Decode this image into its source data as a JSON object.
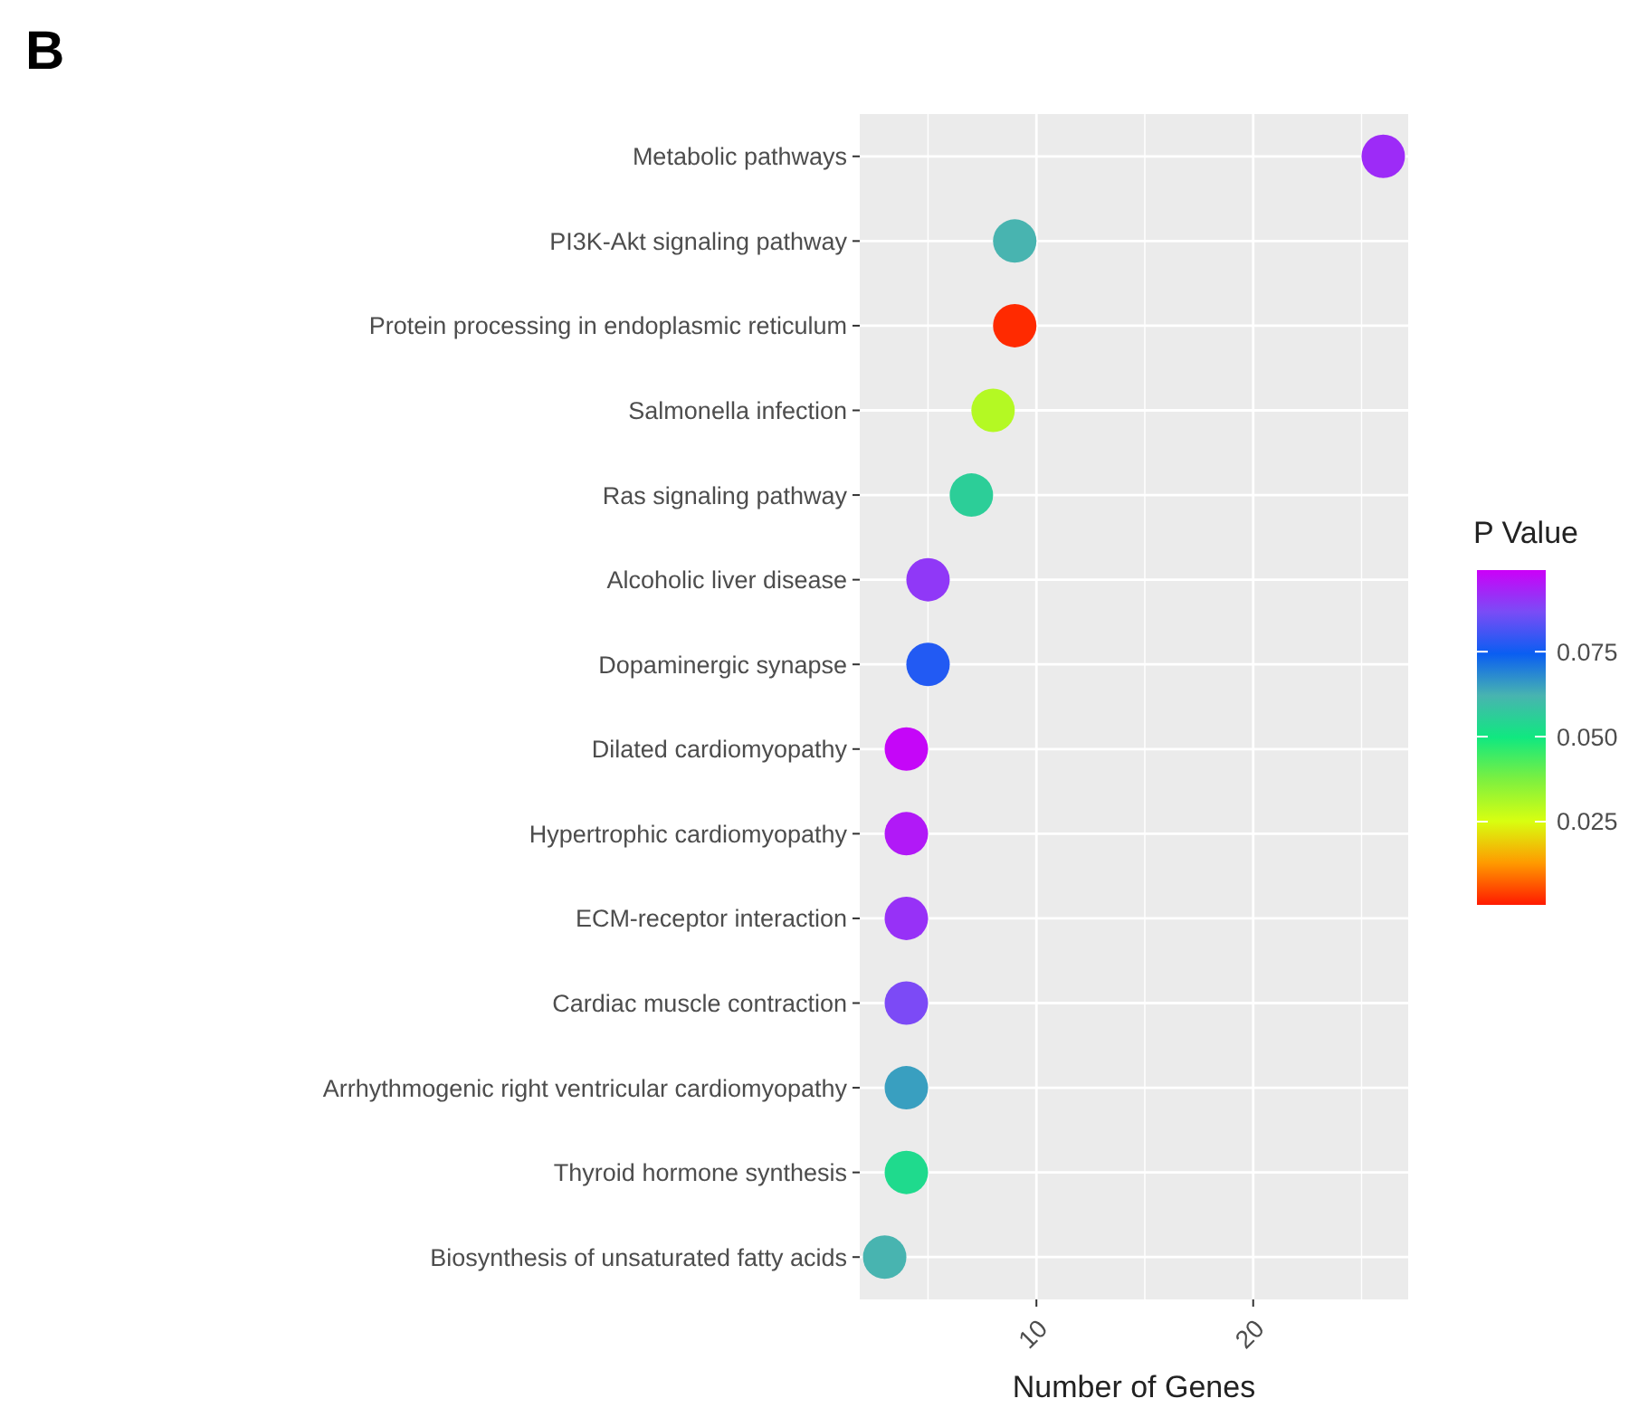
{
  "chart_data": {
    "type": "scatter",
    "title": "B",
    "orientation": "horizontal",
    "xlabel": "Number of Genes",
    "categories": [
      "Metabolic pathways",
      "PI3K-Akt signaling pathway",
      "Protein processing in endoplasmic reticulum",
      "Salmonella infection",
      "Ras signaling pathway",
      "Alcoholic liver disease",
      "Dopaminergic synapse",
      "Dilated cardiomyopathy",
      "Hypertrophic cardiomyopathy",
      "ECM-receptor interaction",
      "Cardiac muscle contraction",
      "Arrhythmogenic right ventricular cardiomyopathy",
      "Thyroid hormone synthesis",
      "Biosynthesis of unsaturated fatty acids"
    ],
    "values": [
      26,
      9,
      9,
      8,
      7,
      5,
      5,
      4,
      4,
      4,
      4,
      4,
      4,
      3
    ],
    "cvalues": [
      0.092,
      0.062,
      0.002,
      0.03,
      0.056,
      0.09,
      0.077,
      0.098,
      0.095,
      0.091,
      0.087,
      0.065,
      0.053,
      0.062
    ],
    "clabel": "P Value",
    "clim": [
      0.0005,
      0.099
    ],
    "cticks": [
      0.025,
      {
        "value": 0.05,
        "label": "0.050"
      },
      {
        "value": 0.075,
        "label": "0.075"
      }
    ],
    "xlim": [
      1.85,
      27.15
    ],
    "xticks": [
      10,
      20
    ],
    "grid": true,
    "marker": "circle"
  }
}
